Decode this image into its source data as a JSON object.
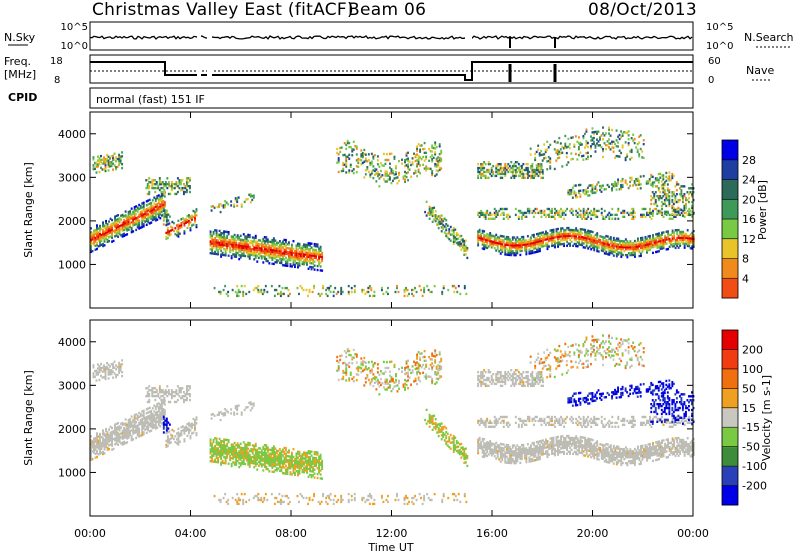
{
  "header": {
    "station": "Christmas Valley East (fitACF)",
    "beam": "Beam 06",
    "date": "08/Oct/2013",
    "mode": "normal (fast) 151 IF"
  },
  "strip_panels": {
    "noise": {
      "left_label": "N.Sky",
      "right_label": "N.Search",
      "left_ticks": [
        "10^5",
        "10^0"
      ],
      "right_ticks": [
        "10^5",
        "10^0"
      ]
    },
    "freq": {
      "left_label_1": "Freq.",
      "left_label_2": "[MHz]",
      "right_label": "Nave",
      "left_ticks": [
        "18",
        "8"
      ],
      "right_ticks": [
        "60",
        "0"
      ]
    },
    "cpid_label": "CPID"
  },
  "x_axis": {
    "label": "Time UT",
    "tick_labels": [
      "00:00",
      "04:00",
      "08:00",
      "12:00",
      "16:00",
      "20:00",
      "00:00"
    ]
  },
  "colors": {
    "power_scale": [
      "#0000e6",
      "#1e3fa0",
      "#2c6b5a",
      "#3f9a5a",
      "#7ac943",
      "#e8c32a",
      "#f08a1c",
      "#f04e14",
      "#e40000"
    ],
    "velocity_scale": [
      "#0000e6",
      "#2a40b8",
      "#3c8c3c",
      "#7ac943",
      "#c8c8c0",
      "#f0a020",
      "#f07010",
      "#f03c10",
      "#e40000"
    ],
    "ground_scatter": "#bdbdb5"
  },
  "chart_data": [
    {
      "type": "heatmap",
      "panel": "power",
      "ylabel": "Slant Range [km]",
      "y_tick_labels": [
        "1000",
        "2000",
        "3000",
        "4000"
      ],
      "ylim": [
        0,
        4500
      ],
      "xlim_hours": [
        0,
        24
      ],
      "colorbar_label": "Power [dB]",
      "colorbar_ticks": [
        "4",
        "8",
        "12",
        "16",
        "20",
        "24",
        "28"
      ]
    },
    {
      "type": "heatmap",
      "panel": "velocity",
      "ylabel": "Slant Range [km]",
      "y_tick_labels": [
        "1000",
        "2000",
        "3000",
        "4000"
      ],
      "ylim": [
        0,
        4500
      ],
      "xlim_hours": [
        0,
        24
      ],
      "colorbar_label": "Velocity [m s-1]",
      "colorbar_ticks": [
        "200",
        "100",
        "50",
        "15",
        "-15",
        "-50",
        "-100",
        "-200"
      ]
    }
  ]
}
